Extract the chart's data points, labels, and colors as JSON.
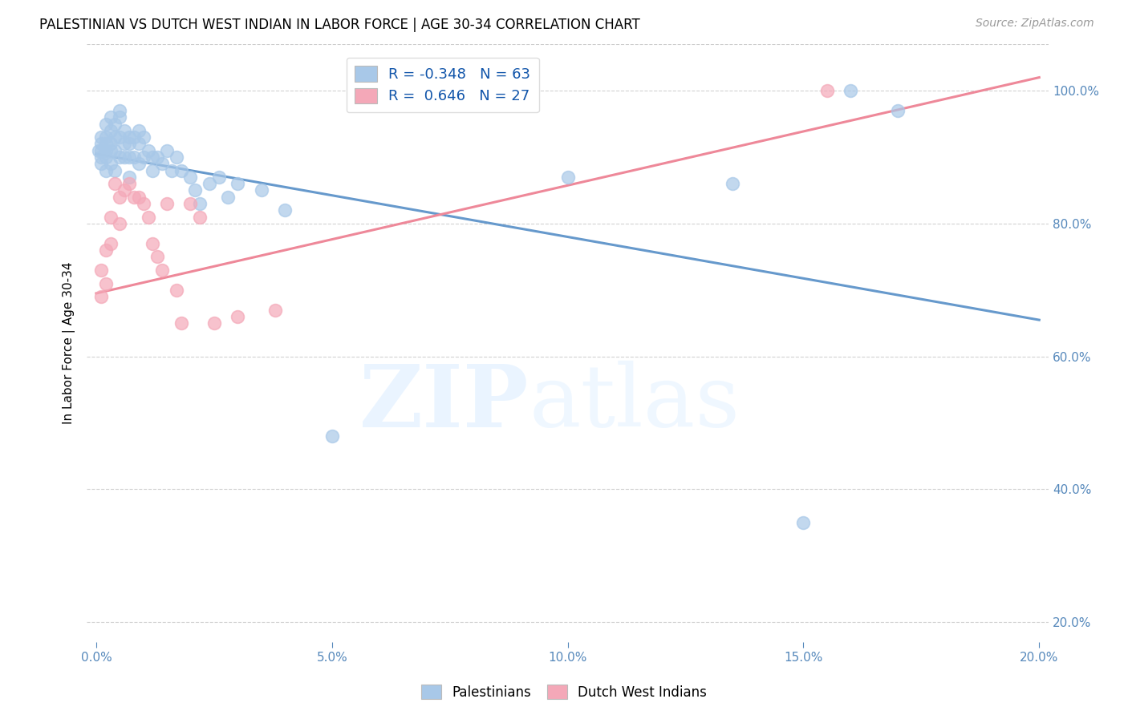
{
  "title": "PALESTINIAN VS DUTCH WEST INDIAN IN LABOR FORCE | AGE 30-34 CORRELATION CHART",
  "source": "Source: ZipAtlas.com",
  "xlabel_ticks": [
    "0.0%",
    "5.0%",
    "10.0%",
    "15.0%",
    "20.0%"
  ],
  "xlabel_tick_vals": [
    0.0,
    0.05,
    0.1,
    0.15,
    0.2
  ],
  "ylabel": "In Labor Force | Age 30-34",
  "ylabel_ticks": [
    "100.0%",
    "80.0%",
    "60.0%",
    "40.0%",
    "20.0%"
  ],
  "ylabel_tick_vals": [
    1.0,
    0.8,
    0.6,
    0.4,
    0.2
  ],
  "xlim": [
    -0.002,
    0.202
  ],
  "ylim": [
    0.17,
    1.07
  ],
  "blue_R": -0.348,
  "blue_N": 63,
  "pink_R": 0.646,
  "pink_N": 27,
  "blue_color": "#A8C8E8",
  "pink_color": "#F4A8B8",
  "blue_line_color": "#6699CC",
  "pink_line_color": "#EE8899",
  "legend_label_blue": "Palestinians",
  "legend_label_pink": "Dutch West Indians",
  "blue_scatter_x": [
    0.0005,
    0.001,
    0.001,
    0.001,
    0.001,
    0.001,
    0.002,
    0.002,
    0.002,
    0.002,
    0.002,
    0.002,
    0.003,
    0.003,
    0.003,
    0.003,
    0.003,
    0.004,
    0.004,
    0.004,
    0.004,
    0.005,
    0.005,
    0.005,
    0.005,
    0.006,
    0.006,
    0.006,
    0.007,
    0.007,
    0.007,
    0.007,
    0.008,
    0.008,
    0.009,
    0.009,
    0.009,
    0.01,
    0.01,
    0.011,
    0.012,
    0.012,
    0.013,
    0.014,
    0.015,
    0.016,
    0.017,
    0.018,
    0.02,
    0.021,
    0.022,
    0.024,
    0.026,
    0.028,
    0.03,
    0.035,
    0.04,
    0.05,
    0.1,
    0.135,
    0.15,
    0.16,
    0.17
  ],
  "blue_scatter_y": [
    0.91,
    0.93,
    0.92,
    0.91,
    0.9,
    0.89,
    0.95,
    0.93,
    0.92,
    0.91,
    0.9,
    0.88,
    0.96,
    0.94,
    0.92,
    0.91,
    0.89,
    0.95,
    0.93,
    0.91,
    0.88,
    0.97,
    0.96,
    0.93,
    0.9,
    0.94,
    0.92,
    0.9,
    0.93,
    0.92,
    0.9,
    0.87,
    0.93,
    0.9,
    0.94,
    0.92,
    0.89,
    0.93,
    0.9,
    0.91,
    0.9,
    0.88,
    0.9,
    0.89,
    0.91,
    0.88,
    0.9,
    0.88,
    0.87,
    0.85,
    0.83,
    0.86,
    0.87,
    0.84,
    0.86,
    0.85,
    0.82,
    0.48,
    0.87,
    0.86,
    0.35,
    1.0,
    0.97
  ],
  "pink_scatter_x": [
    0.001,
    0.001,
    0.002,
    0.002,
    0.003,
    0.003,
    0.004,
    0.005,
    0.005,
    0.006,
    0.007,
    0.008,
    0.009,
    0.01,
    0.011,
    0.012,
    0.013,
    0.014,
    0.015,
    0.017,
    0.018,
    0.02,
    0.022,
    0.025,
    0.03,
    0.038,
    0.155
  ],
  "pink_scatter_y": [
    0.73,
    0.69,
    0.76,
    0.71,
    0.81,
    0.77,
    0.86,
    0.84,
    0.8,
    0.85,
    0.86,
    0.84,
    0.84,
    0.83,
    0.81,
    0.77,
    0.75,
    0.73,
    0.83,
    0.7,
    0.65,
    0.83,
    0.81,
    0.65,
    0.66,
    0.67,
    1.0
  ],
  "blue_line_x0": 0.0,
  "blue_line_y0": 0.905,
  "blue_line_x1": 0.2,
  "blue_line_y1": 0.655,
  "pink_line_x0": 0.0,
  "pink_line_y0": 0.695,
  "pink_line_x1": 0.2,
  "pink_line_y1": 1.02
}
